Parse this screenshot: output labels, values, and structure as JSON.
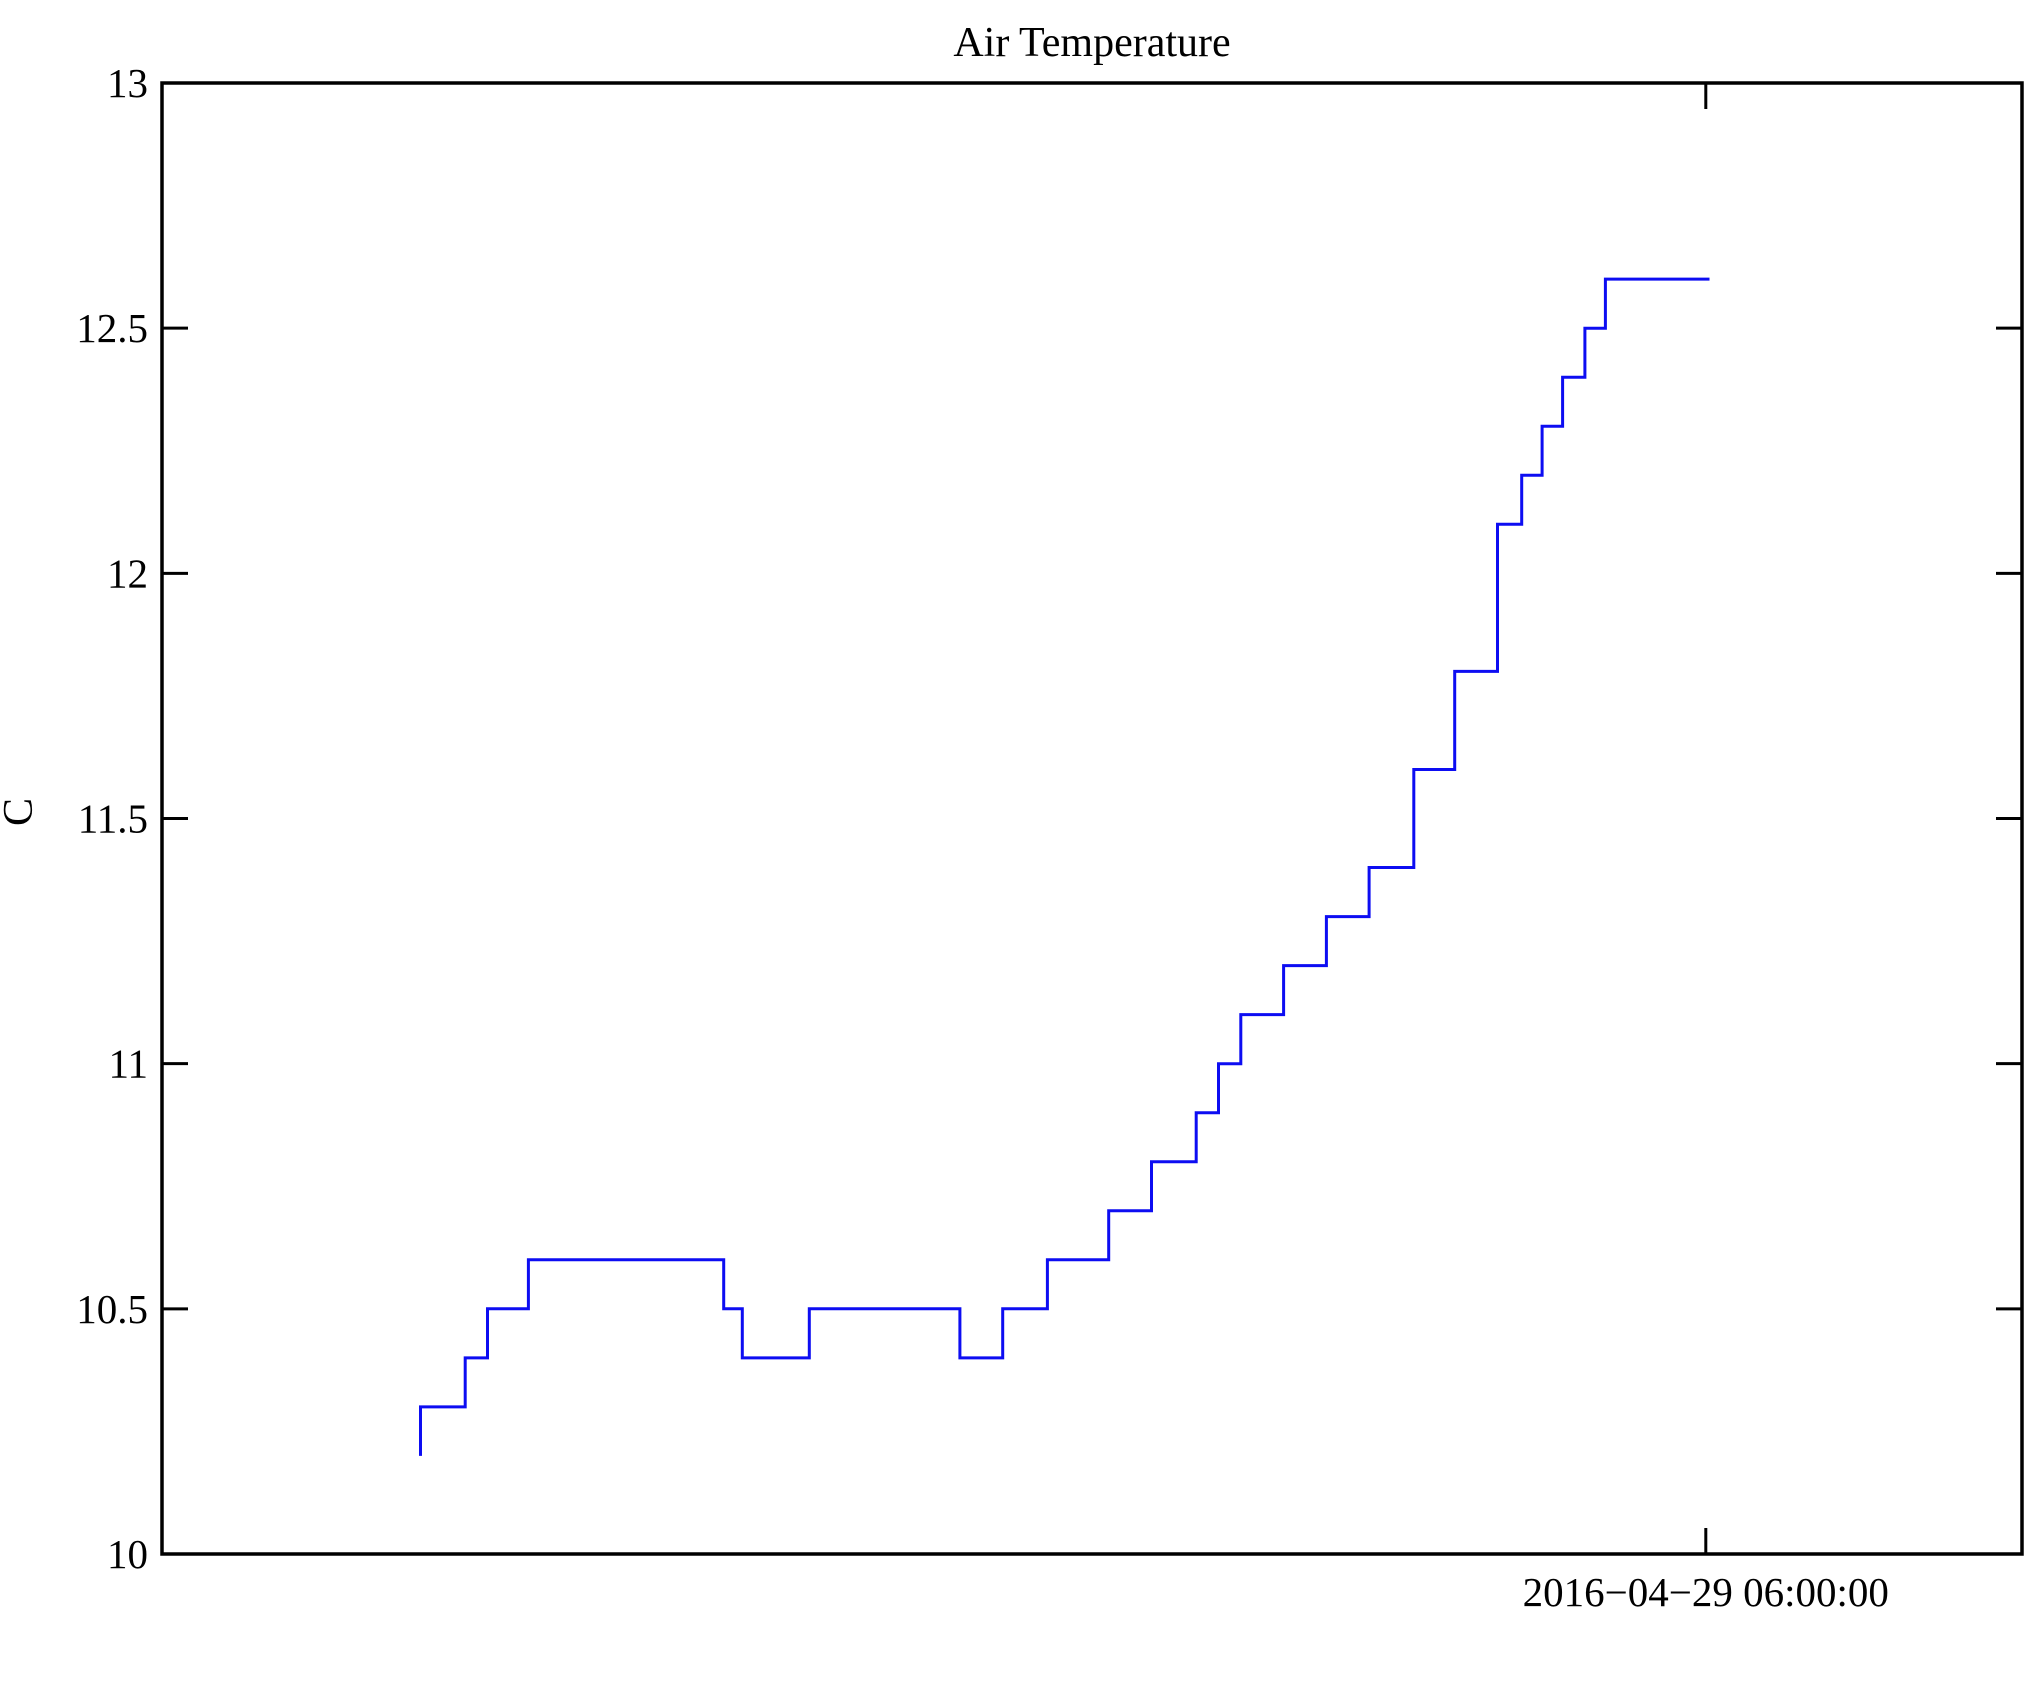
{
  "page": {
    "background_color": "#ffffff",
    "axis_color": "#000000"
  },
  "chart_data": {
    "type": "line",
    "subtype": "step",
    "title": "Air Temperature",
    "xlabel": "",
    "ylabel": "C",
    "series_name": "air-temperature",
    "line_color": "#0d0df2",
    "grid": false,
    "legend_position": "none",
    "ylim": [
      10,
      13
    ],
    "yticks": [
      13,
      12.5,
      12,
      11.5,
      11,
      10.5,
      10
    ],
    "ytick_labels": [
      "13",
      "12.5",
      "12",
      "11.5",
      "11",
      "10.5",
      "10"
    ],
    "x_axis": {
      "tick_label": "2016−04−29 06:00:00",
      "tick_frac": 0.83
    },
    "steps_note": "Each entry is [x as fraction of plot width, temperature in C]; the value holds until the next entry's x. Line starts with a vertical rise at the first x and ends flat at end_frac.",
    "steps": [
      [
        0.139,
        10.2
      ],
      [
        0.139,
        10.3
      ],
      [
        0.163,
        10.4
      ],
      [
        0.175,
        10.5
      ],
      [
        0.197,
        10.6
      ],
      [
        0.302,
        10.5
      ],
      [
        0.312,
        10.4
      ],
      [
        0.348,
        10.5
      ],
      [
        0.429,
        10.4
      ],
      [
        0.452,
        10.5
      ],
      [
        0.476,
        10.6
      ],
      [
        0.509,
        10.7
      ],
      [
        0.532,
        10.8
      ],
      [
        0.556,
        10.9
      ],
      [
        0.568,
        11.0
      ],
      [
        0.58,
        11.1
      ],
      [
        0.603,
        11.2
      ],
      [
        0.626,
        11.3
      ],
      [
        0.649,
        11.4
      ],
      [
        0.673,
        11.6
      ],
      [
        0.695,
        11.8
      ],
      [
        0.718,
        12.1
      ],
      [
        0.731,
        12.2
      ],
      [
        0.742,
        12.3
      ],
      [
        0.753,
        12.4
      ],
      [
        0.765,
        12.5
      ],
      [
        0.776,
        12.6
      ]
    ],
    "end_frac": 0.832
  }
}
